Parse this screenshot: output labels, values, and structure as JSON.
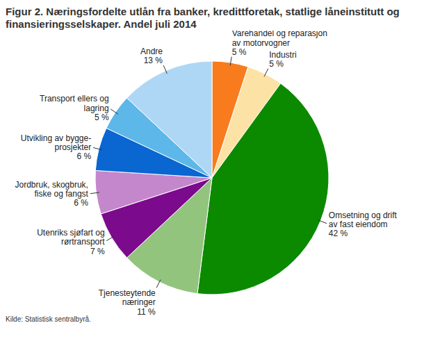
{
  "chart_data": {
    "type": "pie",
    "title": "Figur 2. Næringsfordelte utlån fra banker, kredittforetak, statlige låneinstitutt og finansieringsselskaper. Andel juli 2014",
    "categories": [
      "Varehandel og reparasjon\nav motorvogner",
      "Industri",
      "Omsetning og drift\nav fast eiendom",
      "Tjenesteytende\nnæringer",
      "Utenriks sjøfart og\nrørtransport",
      "Jordbruk, skogbruk,\nfiske og fangst",
      "Utvikling av bygge-\nprosjekter",
      "Transport ellers og\nlagring",
      "Andre"
    ],
    "values": [
      5,
      5,
      42,
      11,
      7,
      6,
      6,
      5,
      13
    ],
    "value_labels": [
      "5 %",
      "5 %",
      "42 %",
      "11 %",
      "7 %",
      "6 %",
      "6 %",
      "5 %",
      "13 %"
    ],
    "colors": [
      "#f87c1e",
      "#fde2a6",
      "#0b8a00",
      "#92c47e",
      "#7c0a8c",
      "#c487cc",
      "#0a66d0",
      "#5db7e8",
      "#aed7f5"
    ],
    "data_labels": true,
    "source": "Kilde: Statistisk sentralbyrå."
  }
}
